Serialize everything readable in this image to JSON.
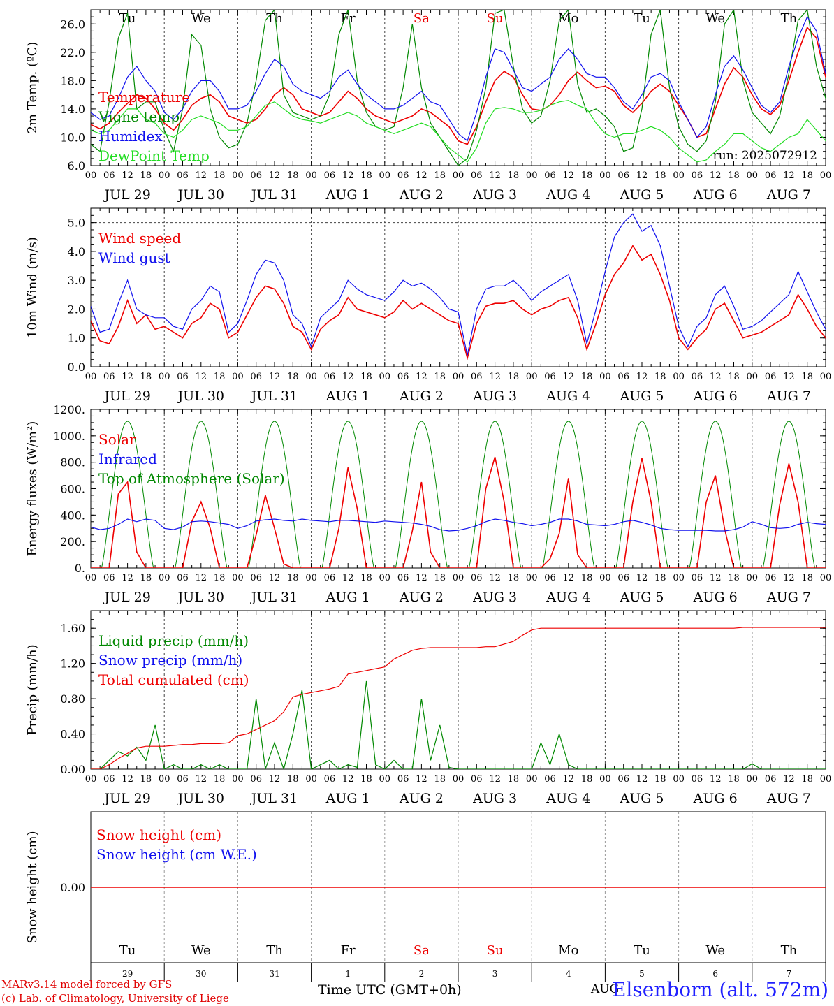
{
  "footer": {
    "model": "MARv3.14 model forced by GFS",
    "credit": "(c) Lab. of Climatology, University of Liege",
    "time_label": "Time UTC (GMT+0h)",
    "aug_label": "AUG",
    "station": "Elsenborn (alt. 572m)"
  },
  "colors": {
    "red": "#ee0000",
    "green": "#008800",
    "blue": "#1010ee",
    "lightgreen": "#22dd22",
    "grid": "#555555"
  },
  "days": {
    "weekday": [
      "Tu",
      "We",
      "Th",
      "Fr",
      "Sa",
      "Su",
      "Mo",
      "Tu",
      "We",
      "Th"
    ],
    "weekend_flags": [
      false,
      false,
      false,
      false,
      true,
      true,
      false,
      false,
      false,
      false
    ],
    "dates": [
      "JUL 29",
      "JUL 30",
      "JUL 31",
      "AUG  1",
      "AUG  2",
      "AUG  3",
      "AUG  4",
      "AUG  5",
      "AUG  6",
      "AUG  7"
    ],
    "daynum": [
      "29",
      "30",
      "31",
      "1",
      "2",
      "3",
      "4",
      "5",
      "6",
      "7"
    ],
    "hour_ticks": [
      "00",
      "06",
      "12",
      "18"
    ],
    "final_tick": "00"
  },
  "chart_data": [
    {
      "type": "line",
      "id": "temp",
      "ylabel": "2m Temp. (ºC)",
      "ylim": [
        6,
        28
      ],
      "yticks": [
        6.0,
        10.0,
        14.0,
        18.0,
        22.0,
        26.0
      ],
      "ytick_labels": [
        "6.0",
        "10.0",
        "14.0",
        "18.0",
        "22.0",
        "26.0"
      ],
      "annotation": "run: 2025072912",
      "x_hours_step": 3,
      "series": [
        {
          "name": "Temperature",
          "color": "red",
          "values": [
            11.8,
            11.2,
            12.0,
            13.5,
            14.8,
            16.0,
            15.5,
            14.0,
            12.0,
            11.0,
            12.5,
            14.5,
            15.5,
            16.0,
            15.0,
            13.0,
            12.5,
            12.0,
            12.5,
            14.0,
            16.0,
            17.0,
            16.0,
            14.0,
            13.5,
            13.0,
            13.5,
            15.0,
            16.5,
            15.5,
            14.0,
            13.0,
            12.5,
            12.0,
            12.5,
            13.0,
            14.0,
            13.5,
            12.5,
            11.5,
            9.5,
            9.0,
            11.5,
            15.0,
            18.0,
            19.3,
            18.5,
            16.0,
            14.0,
            13.8,
            14.5,
            16.0,
            18.0,
            19.2,
            18.0,
            17.0,
            17.2,
            16.5,
            14.5,
            13.5,
            14.8,
            16.5,
            17.5,
            16.5,
            14.5,
            12.5,
            10.0,
            10.5,
            14.0,
            17.5,
            19.8,
            18.5,
            16.0,
            14.0,
            13.2,
            14.5,
            18.0,
            22.0,
            25.5,
            24.0,
            18.5,
            18.0
          ]
        },
        {
          "name": "Vigne temp",
          "color": "green",
          "values": [
            9.0,
            8.0,
            15.0,
            24.0,
            27.5,
            14.0,
            15.0,
            15.0,
            11.0,
            8.0,
            14.0,
            24.5,
            23.0,
            14.0,
            10.0,
            8.5,
            9.0,
            12.0,
            18.0,
            26.5,
            28.0,
            16.0,
            13.5,
            13.0,
            12.5,
            13.0,
            16.0,
            24.5,
            28.0,
            18.0,
            13.5,
            11.5,
            11.0,
            11.5,
            17.0,
            26.0,
            17.0,
            12.0,
            10.0,
            8.0,
            6.0,
            7.0,
            11.0,
            17.0,
            27.5,
            28.0,
            20.0,
            14.0,
            12.0,
            13.0,
            18.0,
            26.5,
            28.0,
            17.5,
            13.5,
            14.0,
            13.0,
            11.5,
            8.0,
            8.5,
            14.0,
            24.5,
            28.0,
            17.0,
            11.5,
            9.0,
            8.0,
            9.5,
            15.0,
            26.0,
            28.0,
            18.0,
            13.5,
            12.0,
            10.5,
            13.0,
            19.0,
            26.5,
            28.0,
            20.0,
            15.5,
            14.5
          ]
        },
        {
          "name": "Humidex",
          "color": "blue",
          "values": [
            13.5,
            12.5,
            13.0,
            15.5,
            18.5,
            20.0,
            18.0,
            16.5,
            13.5,
            12.5,
            14.0,
            16.5,
            18.0,
            18.0,
            16.5,
            14.0,
            14.0,
            14.5,
            16.5,
            19.0,
            21.0,
            20.0,
            17.5,
            16.5,
            16.0,
            15.5,
            16.5,
            18.5,
            19.5,
            17.5,
            16.0,
            15.0,
            14.0,
            14.0,
            14.5,
            15.5,
            16.5,
            15.0,
            14.5,
            12.5,
            10.5,
            9.5,
            13.5,
            18.5,
            22.5,
            22.0,
            19.5,
            17.0,
            16.5,
            17.5,
            18.5,
            21.0,
            22.5,
            21.0,
            19.0,
            18.5,
            18.5,
            17.0,
            15.0,
            14.0,
            16.0,
            18.5,
            19.0,
            18.0,
            15.0,
            12.5,
            10.0,
            11.5,
            16.0,
            20.0,
            21.5,
            19.5,
            17.0,
            14.5,
            13.5,
            15.0,
            20.0,
            24.0,
            27.0,
            25.0,
            19.0,
            18.5
          ]
        },
        {
          "name": "DewPoint Temp",
          "color": "lightgreen",
          "values": [
            11.0,
            10.5,
            11.0,
            12.5,
            14.0,
            14.0,
            12.5,
            12.0,
            10.5,
            10.0,
            11.0,
            12.5,
            13.0,
            12.5,
            12.0,
            11.0,
            11.0,
            11.5,
            13.0,
            14.5,
            15.0,
            14.0,
            13.0,
            12.5,
            12.3,
            12.0,
            12.5,
            13.0,
            13.5,
            13.0,
            12.0,
            11.5,
            11.0,
            10.5,
            11.0,
            11.5,
            12.0,
            11.5,
            10.0,
            8.5,
            7.5,
            6.5,
            8.5,
            12.0,
            14.0,
            14.2,
            14.0,
            13.5,
            13.5,
            13.8,
            14.5,
            15.0,
            15.2,
            14.5,
            14.0,
            12.0,
            10.5,
            10.0,
            10.5,
            10.5,
            11.0,
            11.5,
            11.0,
            10.0,
            8.5,
            7.5,
            6.5,
            6.8,
            8.0,
            9.0,
            10.5,
            10.5,
            9.5,
            8.5,
            8.0,
            9.0,
            10.0,
            10.5,
            12.5,
            11.0,
            9.5,
            7.5
          ]
        }
      ]
    },
    {
      "type": "line",
      "id": "wind",
      "ylabel": "10m Wind (m/s)",
      "ylim": [
        0,
        5.5
      ],
      "yticks": [
        0,
        1,
        2,
        3,
        4,
        5
      ],
      "ytick_labels": [
        "0.0",
        "1.0",
        "2.0",
        "3.0",
        "4.0",
        "5.0"
      ],
      "hline": 5,
      "x_hours_step": 3,
      "series": [
        {
          "name": "Wind speed",
          "color": "red",
          "values": [
            1.6,
            0.9,
            0.8,
            1.4,
            2.3,
            1.5,
            1.8,
            1.3,
            1.4,
            1.2,
            1.0,
            1.5,
            1.7,
            2.2,
            2.0,
            1.0,
            1.2,
            1.8,
            2.4,
            2.8,
            2.7,
            2.2,
            1.4,
            1.2,
            0.6,
            1.3,
            1.6,
            1.8,
            2.4,
            2.0,
            1.9,
            1.8,
            1.7,
            1.9,
            2.3,
            2.0,
            2.2,
            2.0,
            1.8,
            1.6,
            1.5,
            0.3,
            1.5,
            2.1,
            2.2,
            2.2,
            2.3,
            2.0,
            1.8,
            2.0,
            2.1,
            2.3,
            2.4,
            1.7,
            0.6,
            1.5,
            2.5,
            3.2,
            3.6,
            4.2,
            3.7,
            3.9,
            3.2,
            2.3,
            1.0,
            0.6,
            1.0,
            1.3,
            2.0,
            2.2,
            1.6,
            1.0,
            1.1,
            1.2,
            1.4,
            1.6,
            1.8,
            2.5,
            2.0,
            1.4,
            1.0,
            1.1
          ]
        },
        {
          "name": "Wind gust",
          "color": "blue",
          "values": [
            2.1,
            1.2,
            1.3,
            2.2,
            3.0,
            2.0,
            1.8,
            1.7,
            1.7,
            1.4,
            1.3,
            2.0,
            2.3,
            2.8,
            2.6,
            1.2,
            1.5,
            2.3,
            3.2,
            3.7,
            3.6,
            3.0,
            1.8,
            1.5,
            0.7,
            1.7,
            2.0,
            2.3,
            3.0,
            2.7,
            2.5,
            2.4,
            2.3,
            2.6,
            3.0,
            2.8,
            2.9,
            2.7,
            2.4,
            2.0,
            1.9,
            0.4,
            2.0,
            2.7,
            2.8,
            2.8,
            3.0,
            2.7,
            2.3,
            2.6,
            2.8,
            3.0,
            3.2,
            2.3,
            0.8,
            2.0,
            3.3,
            4.5,
            5.0,
            5.3,
            4.7,
            4.9,
            4.2,
            2.8,
            1.4,
            0.7,
            1.4,
            1.7,
            2.5,
            2.8,
            2.1,
            1.3,
            1.4,
            1.6,
            1.9,
            2.2,
            2.5,
            3.3,
            2.6,
            1.9,
            1.3,
            1.5
          ]
        }
      ]
    },
    {
      "type": "line",
      "id": "energy",
      "ylabel": "Energy fluxes (W/m²)",
      "ylim": [
        0,
        1200
      ],
      "yticks": [
        0,
        200,
        400,
        600,
        800,
        1000,
        1200
      ],
      "ytick_labels": [
        "0.",
        "200.",
        "400.",
        "600.",
        "800.",
        "1000.",
        "1200."
      ],
      "x_hours_step": 3,
      "toa_peak": 1110,
      "series": [
        {
          "name": "Solar",
          "color": "red",
          "values": [
            0,
            0,
            0,
            560,
            650,
            120,
            0,
            0,
            0,
            0,
            0,
            350,
            500,
            300,
            0,
            0,
            0,
            0,
            250,
            550,
            300,
            30,
            0,
            0,
            0,
            0,
            0,
            300,
            760,
            450,
            0,
            0,
            0,
            0,
            0,
            280,
            650,
            120,
            0,
            0,
            0,
            0,
            0,
            600,
            840,
            500,
            0,
            0,
            0,
            0,
            70,
            260,
            680,
            100,
            0,
            0,
            0,
            0,
            0,
            500,
            830,
            500,
            0,
            0,
            0,
            0,
            0,
            500,
            700,
            300,
            0,
            0,
            0,
            0,
            0,
            480,
            790,
            500,
            0,
            0,
            0,
            0
          ]
        },
        {
          "name": "Infrared",
          "color": "blue",
          "values": [
            310,
            290,
            300,
            330,
            370,
            350,
            370,
            360,
            300,
            290,
            310,
            350,
            355,
            350,
            340,
            330,
            300,
            320,
            355,
            365,
            370,
            360,
            355,
            370,
            360,
            355,
            350,
            360,
            360,
            355,
            350,
            345,
            355,
            350,
            345,
            340,
            330,
            315,
            290,
            280,
            285,
            300,
            320,
            350,
            370,
            360,
            345,
            335,
            320,
            330,
            345,
            370,
            370,
            355,
            330,
            325,
            320,
            330,
            350,
            360,
            345,
            325,
            300,
            290,
            285,
            285,
            285,
            285,
            280,
            280,
            290,
            310,
            350,
            330,
            305,
            300,
            305,
            330,
            345,
            335,
            330,
            340
          ]
        },
        {
          "name": "Top of Atmosphere (Solar)",
          "color": "green",
          "values": []
        }
      ]
    },
    {
      "type": "line",
      "id": "precip",
      "ylabel": "Precip (mm/h)",
      "ylim": [
        0,
        1.8
      ],
      "yticks": [
        0,
        0.4,
        0.8,
        1.2,
        1.6
      ],
      "ytick_labels": [
        "0.00",
        "0.40",
        "0.80",
        "1.20",
        "1.60"
      ],
      "x_hours_step": 3,
      "series": [
        {
          "name": "Liquid precip (mm/h)",
          "color": "green",
          "values": [
            0,
            0,
            0.1,
            0.2,
            0.15,
            0.25,
            0.1,
            0.5,
            0.0,
            0.05,
            0.0,
            0.0,
            0.05,
            0.0,
            0.05,
            0.0,
            0.0,
            0.0,
            0.8,
            0.0,
            0.3,
            0.0,
            0.4,
            0.9,
            0.0,
            0.05,
            0.1,
            0.0,
            0.05,
            0.02,
            1.0,
            0.05,
            0.0,
            0.1,
            0.0,
            0.0,
            0.8,
            0.1,
            0.5,
            0.02,
            0,
            0,
            0,
            0,
            0.0,
            0.0,
            0.0,
            0.0,
            0.0,
            0.3,
            0.05,
            0.4,
            0.05,
            0.0,
            0,
            0,
            0,
            0,
            0,
            0,
            0,
            0,
            0,
            0,
            0,
            0,
            0,
            0,
            0,
            0,
            0,
            0,
            0.06,
            0,
            0,
            0,
            0,
            0,
            0,
            0,
            0,
            0
          ]
        },
        {
          "name": "Snow precip (mm/h)",
          "color": "blue",
          "values": []
        },
        {
          "name": "Total cumulated (cm)",
          "color": "red",
          "values": [
            0.0,
            0.0,
            0.05,
            0.12,
            0.18,
            0.24,
            0.26,
            0.26,
            0.26,
            0.27,
            0.28,
            0.28,
            0.29,
            0.29,
            0.29,
            0.3,
            0.38,
            0.4,
            0.45,
            0.5,
            0.55,
            0.65,
            0.82,
            0.85,
            0.87,
            0.89,
            0.91,
            0.94,
            1.08,
            1.1,
            1.12,
            1.14,
            1.16,
            1.25,
            1.3,
            1.35,
            1.37,
            1.38,
            1.38,
            1.38,
            1.38,
            1.38,
            1.38,
            1.39,
            1.39,
            1.42,
            1.45,
            1.52,
            1.58,
            1.6,
            1.6,
            1.6,
            1.6,
            1.6,
            1.6,
            1.6,
            1.6,
            1.6,
            1.6,
            1.6,
            1.6,
            1.6,
            1.6,
            1.6,
            1.6,
            1.6,
            1.6,
            1.6,
            1.6,
            1.6,
            1.6,
            1.61,
            1.61,
            1.61,
            1.61,
            1.61,
            1.61,
            1.61,
            1.61,
            1.61,
            1.61,
            1.61
          ]
        }
      ]
    },
    {
      "type": "line",
      "id": "snow",
      "ylabel": "Snow height (cm)",
      "ylim": [
        -1,
        1
      ],
      "yticks": [
        0
      ],
      "ytick_labels": [
        "0.00"
      ],
      "x_hours_step": 3,
      "series": [
        {
          "name": "Snow height (cm)",
          "color": "red",
          "values": [
            0,
            0
          ]
        },
        {
          "name": "Snow height (cm W.E.)",
          "color": "blue",
          "values": []
        }
      ]
    }
  ]
}
